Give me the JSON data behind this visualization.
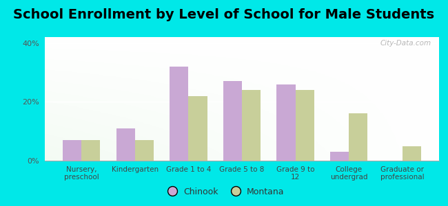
{
  "title": "School Enrollment by Level of School for Male Students",
  "categories": [
    "Nursery,\npreschool",
    "Kindergarten",
    "Grade 1 to 4",
    "Grade 5 to 8",
    "Grade 9 to\n12",
    "College\nundergrad",
    "Graduate or\nprofessional"
  ],
  "chinook": [
    7.0,
    11.0,
    32.0,
    27.0,
    26.0,
    3.0,
    0.0
  ],
  "montana": [
    7.0,
    7.0,
    22.0,
    24.0,
    24.0,
    16.0,
    5.0
  ],
  "chinook_color": "#c9a8d4",
  "montana_color": "#c8cf9a",
  "background_color": "#00e8e8",
  "ylim": [
    0,
    42
  ],
  "yticks": [
    0,
    20,
    40
  ],
  "ytick_labels": [
    "0%",
    "20%",
    "40%"
  ],
  "bar_width": 0.35,
  "title_fontsize": 14,
  "legend_labels": [
    "Chinook",
    "Montana"
  ],
  "watermark": "City-Data.com"
}
